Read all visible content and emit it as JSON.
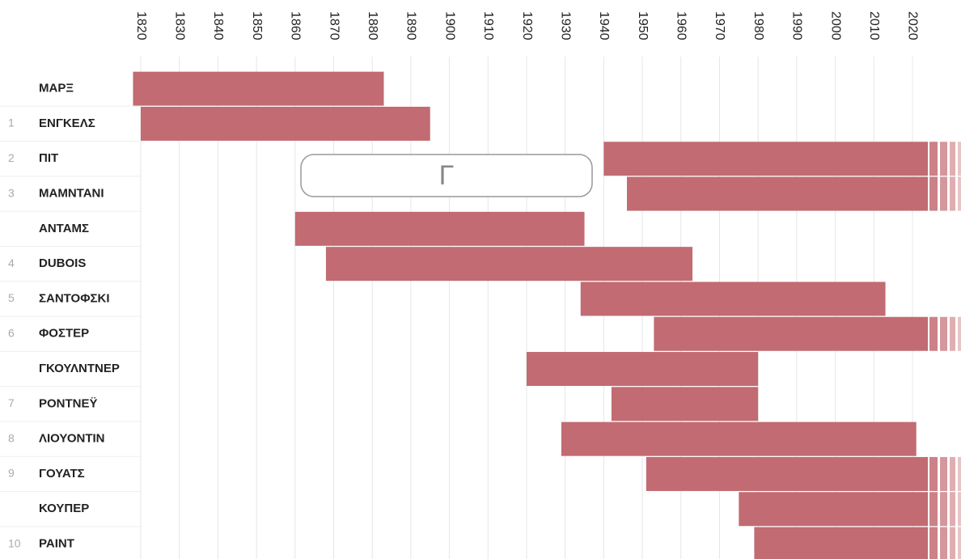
{
  "chart_data": {
    "type": "timeline",
    "categories": [
      "ΜΑΡΞ",
      "ΕΝΓΚΕΛΣ",
      "ΠΙΤ",
      "ΜΑΜΝΤΑΝΙ",
      "ΑΝΤΑΜΣ",
      "DUBOIS",
      "ΣΑΝΤΟΦΣΚΙ",
      "ΦΟΣΤΕΡ",
      "ΓΚΟΥΛΝΤΝΕΡ",
      "ΡΟΝΤΝΕΫ",
      "ΛΙΟΥΟΝΤΙΝ",
      "ΓΟΥΑΤΣ",
      "ΚΟΥΠΕΡ",
      "PAINT"
    ],
    "ranks": [
      null,
      1,
      2,
      3,
      null,
      4,
      5,
      6,
      null,
      7,
      8,
      9,
      null,
      10
    ],
    "start": [
      1818,
      1820,
      1940,
      1946,
      1860,
      1868,
      1934,
      1953,
      1920,
      1942,
      1929,
      1951,
      1975,
      1979
    ],
    "end": [
      1883,
      1895,
      2024,
      2024,
      1935,
      1963,
      2013,
      2024,
      1980,
      1980,
      2021,
      2024,
      2024,
      2024
    ],
    "ongoing": [
      false,
      false,
      true,
      true,
      false,
      false,
      false,
      true,
      false,
      false,
      false,
      true,
      true,
      true
    ],
    "color": "#c26b72",
    "xlim": [
      1816,
      2032
    ],
    "xticks": [
      1820,
      1830,
      1840,
      1850,
      1860,
      1870,
      1880,
      1890,
      1900,
      1910,
      1920,
      1930,
      1940,
      1950,
      1960,
      1970,
      1980,
      1990,
      2000,
      2010,
      2020
    ],
    "grid": true,
    "search_label": "Γ"
  }
}
